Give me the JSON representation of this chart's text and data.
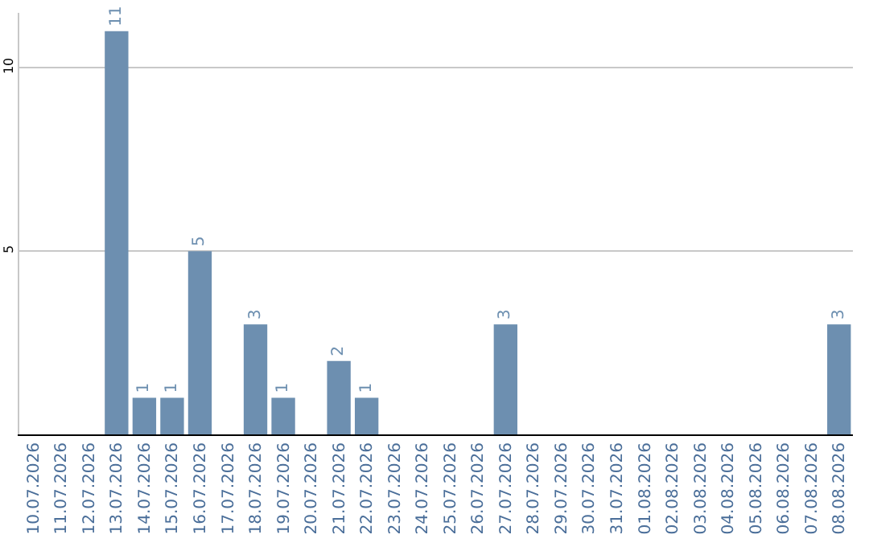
{
  "chart_data": {
    "type": "bar",
    "categories": [
      "10.07.2026",
      "11.07.2026",
      "12.07.2026",
      "13.07.2026",
      "14.07.2026",
      "15.07.2026",
      "16.07.2026",
      "17.07.2026",
      "18.07.2026",
      "19.07.2026",
      "20.07.2026",
      "21.07.2026",
      "22.07.2026",
      "23.07.2026",
      "24.07.2026",
      "25.07.2026",
      "26.07.2026",
      "27.07.2026",
      "28.07.2026",
      "29.07.2026",
      "30.07.2026",
      "31.07.2026",
      "01.08.2026",
      "02.08.2026",
      "03.08.2026",
      "04.08.2026",
      "05.08.2026",
      "06.08.2026",
      "07.08.2026",
      "08.08.2026"
    ],
    "values": [
      0,
      0,
      0,
      11,
      1,
      1,
      5,
      0,
      3,
      1,
      0,
      2,
      1,
      0,
      0,
      0,
      0,
      3,
      0,
      0,
      0,
      0,
      0,
      0,
      0,
      0,
      0,
      0,
      0,
      3
    ],
    "value_labels": [
      null,
      null,
      null,
      "11",
      "1",
      "1",
      "5",
      null,
      "3",
      "1",
      null,
      "2",
      "1",
      null,
      null,
      null,
      null,
      "3",
      null,
      null,
      null,
      null,
      null,
      null,
      null,
      null,
      null,
      null,
      null,
      "3"
    ],
    "color": "#6d8fb0",
    "ylim": [
      0,
      11.5
    ],
    "yticks": [
      5,
      10
    ],
    "grid": "y"
  }
}
